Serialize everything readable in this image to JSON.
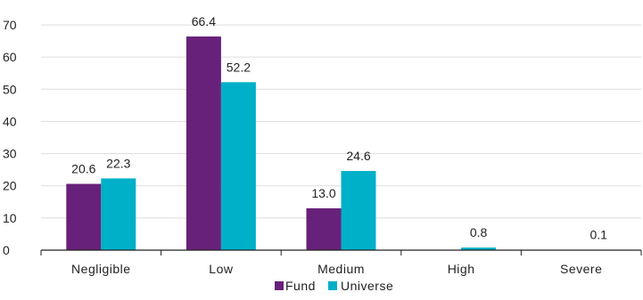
{
  "chart_data": {
    "type": "bar",
    "title": "",
    "xlabel": "",
    "ylabel": "",
    "categories": [
      "Negligible",
      "Low",
      "Medium",
      "High",
      "Severe"
    ],
    "series": [
      {
        "name": "Fund",
        "values": [
          20.6,
          66.4,
          13.0,
          0.0,
          0.0
        ],
        "labels": [
          "20.6",
          "66.4",
          "13.0",
          "",
          ""
        ],
        "color": "#68217a"
      },
      {
        "name": "Universe",
        "values": [
          22.3,
          52.2,
          24.6,
          0.8,
          0.1
        ],
        "labels": [
          "22.3",
          "52.2",
          "24.6",
          "0.8",
          "0.1"
        ],
        "color": "#00b0c8"
      }
    ],
    "ylim": [
      0,
      70
    ],
    "yticks": [
      0,
      10,
      20,
      30,
      40,
      50,
      60,
      70
    ],
    "grid": true,
    "legend": "bottom-center"
  }
}
